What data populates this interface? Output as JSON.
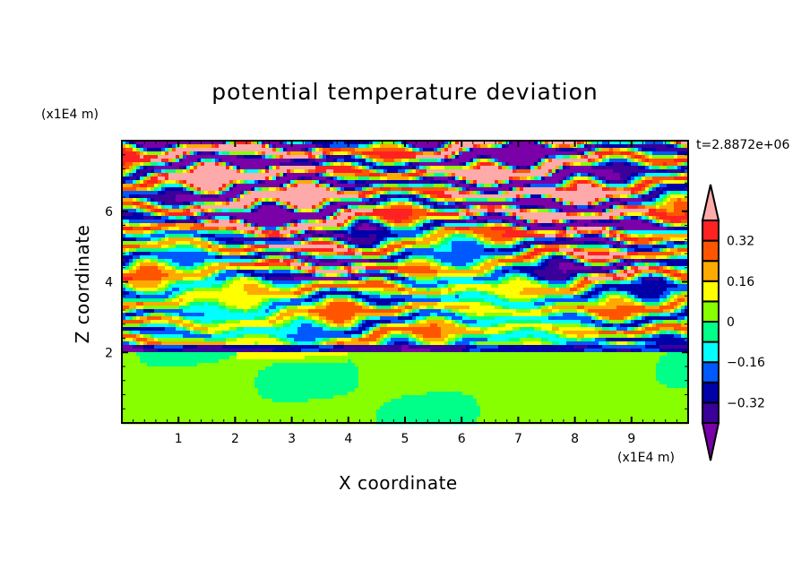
{
  "chart_data": {
    "type": "heatmap",
    "title": "potential temperature deviation",
    "xlabel": "X coordinate",
    "ylabel": "Z coordinate",
    "x_unit_label": "(x1E4 m)",
    "y_unit_label": "(x1E4 m)",
    "time_label": "t=2.8872e+06",
    "xlim": [
      0,
      10
    ],
    "ylim": [
      0,
      8
    ],
    "x_ticks": [
      "1",
      "2",
      "3",
      "4",
      "5",
      "6",
      "7",
      "8",
      "9"
    ],
    "y_ticks": [
      "2",
      "4",
      "6"
    ],
    "levels": [
      -0.4,
      -0.32,
      -0.24,
      -0.16,
      -0.08,
      0,
      0.08,
      0.16,
      0.24,
      0.32,
      0.4
    ],
    "colorbar_labels": [
      "0.32",
      "0.16",
      "0",
      "−0.16",
      "−0.32"
    ],
    "colorbar_label_values": [
      0.32,
      0.16,
      0,
      -0.16,
      -0.32
    ],
    "colors": {
      "under": "#7a00a8",
      "bins": [
        "#3a0099",
        "#0000a8",
        "#0058ff",
        "#00ffff",
        "#00ff88",
        "#88ff00",
        "#ffff00",
        "#ffaa00",
        "#ff5500",
        "#ff2222"
      ],
      "over": "#ffaaaa"
    },
    "z_profile": [
      {
        "z_range": [
          0,
          2.0
        ],
        "mean": 0.02,
        "amplitude": 0.05,
        "note": "weak, green / yellow-green"
      },
      {
        "z_range": [
          2.0,
          2.2
        ],
        "mean": -0.3,
        "amplitude": 0.1
      },
      {
        "z_range": [
          2.2,
          4.0
        ],
        "mean": 0.0,
        "amplitude": 0.28
      },
      {
        "z_range": [
          4.0,
          5.5
        ],
        "mean": 0.0,
        "amplitude": 0.42
      },
      {
        "z_range": [
          5.5,
          8.0
        ],
        "mean": 0.0,
        "amplitude": 0.65
      }
    ],
    "colorbar_position": "right"
  }
}
